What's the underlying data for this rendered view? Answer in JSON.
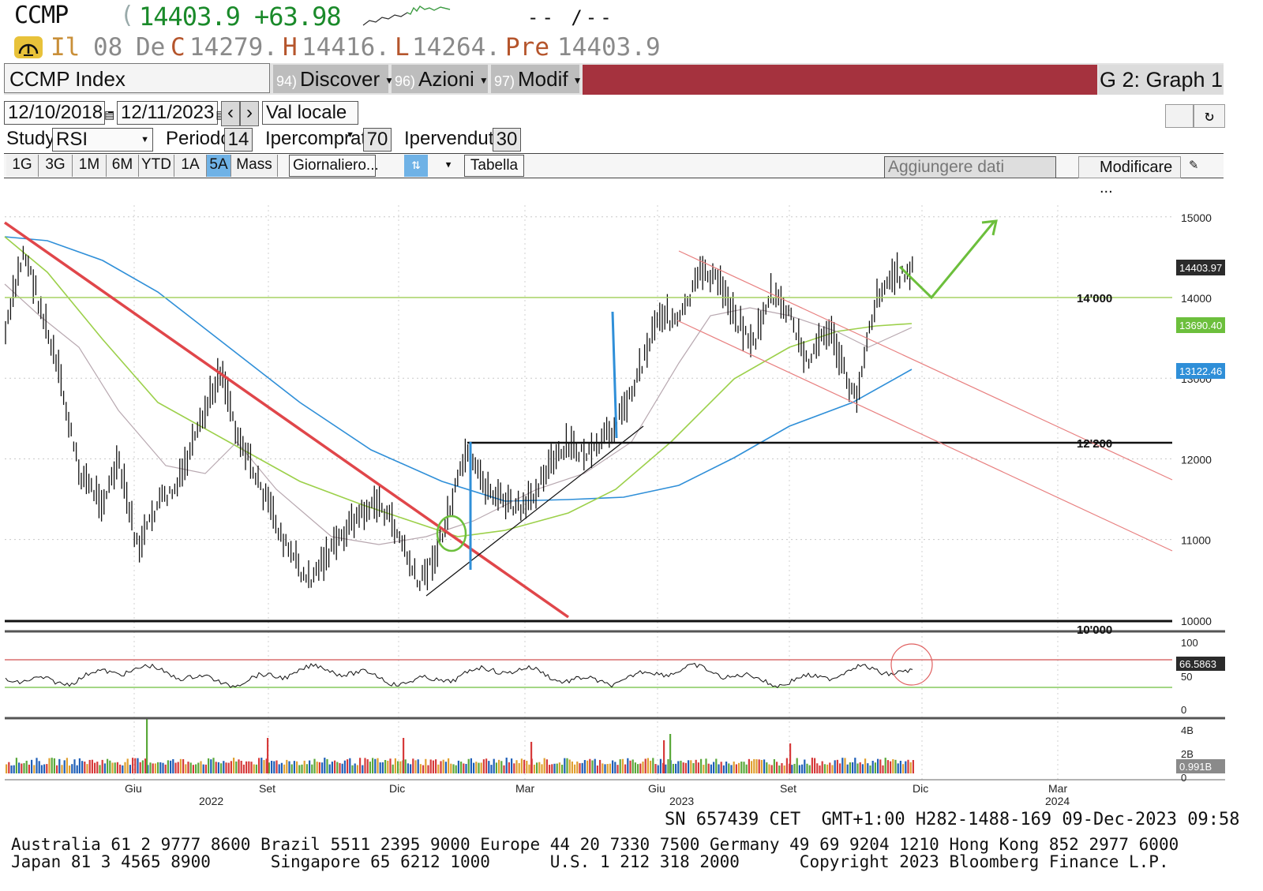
{
  "header": {
    "ticker": "CCMP",
    "paren": "(",
    "last_price": "14403.9",
    "net_change": "+63.98",
    "time_placeholder": "-- /--",
    "row2": {
      "il": "Il",
      "date_day": "08",
      "date_mon": "De",
      "close_label": "C",
      "close_value": "14279.",
      "high_label": "H",
      "high_value": "14416.",
      "low_label": "L",
      "low_value": "14264.",
      "prev_label": "Pre",
      "prev_value": "14403.9"
    }
  },
  "function_bar": {
    "security": "CCMP Index",
    "menus": [
      {
        "num": "94)",
        "label": "Discover"
      },
      {
        "num": "96)",
        "label": "Azioni"
      },
      {
        "num": "97)",
        "label": "Modif"
      }
    ],
    "graph_label": "G 2: Graph 1"
  },
  "controls": {
    "start_date": "12/10/2018",
    "end_date": "12/11/2023",
    "currency": "Val locale",
    "study_label": "Study",
    "study_value": "RSI",
    "period_label": "Periodo",
    "period_value": "14",
    "overbought_label": "Ipercomprato",
    "overbought_value": "70",
    "oversold_label": "Ipervenduto",
    "oversold_value": "30",
    "periods": [
      "1G",
      "3G",
      "1M",
      "6M",
      "YTD",
      "1A",
      "5A",
      "Mass"
    ],
    "active_period": "5A",
    "frequency": "Giornaliero...",
    "table_button": "Tabella",
    "add_data": "Aggiungere dati",
    "modify": "Modificare ..."
  },
  "chart": {
    "price_axis": [
      "15000",
      "14000",
      "13000",
      "12000",
      "11000",
      "10000"
    ],
    "price_tags": [
      {
        "text": "14403.97",
        "color": "#2b2b2b"
      },
      {
        "text": "13690.40",
        "color": "#6cbf3c"
      },
      {
        "text": "13122.46",
        "color": "#2f8fd8"
      }
    ],
    "level_labels": [
      "14'000",
      "12'200",
      "10'000"
    ],
    "rsi_axis": [
      "100",
      "50",
      "0"
    ],
    "rsi_tag": "66.5863",
    "volume_axis": [
      "4B",
      "2B",
      "0"
    ],
    "volume_tag": "0.991B",
    "month_labels": [
      "Giu",
      "Set",
      "Dic",
      "Mar",
      "Giu",
      "Set",
      "Dic",
      "Mar"
    ],
    "year_labels": [
      "2022",
      "2023",
      "2024"
    ],
    "colors": {
      "price": "#111111",
      "ma_blue": "#2f8fd8",
      "ma_green": "#9cd04a",
      "ma_grey": "#b8a8b0",
      "trend_red": "#e0464a",
      "channel": "#e88080",
      "annotation_green": "#6cbf3c",
      "annotation_blue": "#2f8fd8"
    }
  },
  "footer": {
    "line1": "SN 657439 CET  GMT+1:00 H282-1488-169 09-Dec-2023 09:58",
    "line2": "Australia 61 2 9777 8600 Brazil 5511 2395 9000 Europe 44 20 7330 7500 Germany 49 69 9204 1210 Hong Kong 852 2977 6000",
    "line3": "Japan 81 3 4565 8900      Singapore 65 6212 1000      U.S. 1 212 318 2000      Copyright 2023 Bloomberg Finance L.P."
  }
}
